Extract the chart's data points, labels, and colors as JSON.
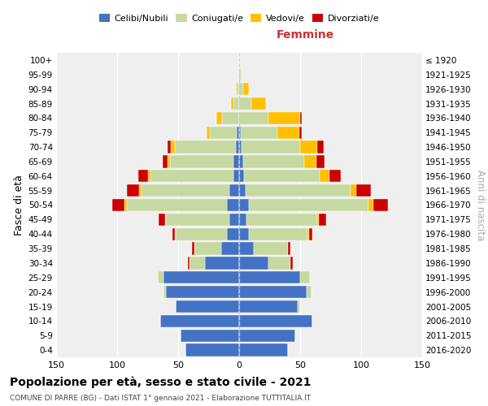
{
  "age_groups": [
    "0-4",
    "5-9",
    "10-14",
    "15-19",
    "20-24",
    "25-29",
    "30-34",
    "35-39",
    "40-44",
    "45-49",
    "50-54",
    "55-59",
    "60-64",
    "65-69",
    "70-74",
    "75-79",
    "80-84",
    "85-89",
    "90-94",
    "95-99",
    "100+"
  ],
  "birth_years": [
    "2016-2020",
    "2011-2015",
    "2006-2010",
    "2001-2005",
    "1996-2000",
    "1991-1995",
    "1986-1990",
    "1981-1985",
    "1976-1980",
    "1971-1975",
    "1966-1970",
    "1961-1965",
    "1956-1960",
    "1951-1955",
    "1946-1950",
    "1941-1945",
    "1936-1940",
    "1931-1935",
    "1926-1930",
    "1921-1925",
    "≤ 1920"
  ],
  "male": {
    "celibe": [
      44,
      48,
      65,
      52,
      60,
      62,
      28,
      15,
      10,
      8,
      10,
      8,
      5,
      5,
      3,
      2,
      0,
      0,
      0,
      0,
      0
    ],
    "coniugato": [
      0,
      0,
      0,
      0,
      2,
      5,
      13,
      22,
      42,
      52,
      82,
      72,
      68,
      52,
      50,
      22,
      14,
      5,
      2,
      1,
      0
    ],
    "vedovo": [
      0,
      0,
      0,
      0,
      0,
      0,
      0,
      0,
      1,
      1,
      2,
      2,
      2,
      2,
      3,
      3,
      5,
      2,
      1,
      0,
      0
    ],
    "divorziato": [
      0,
      0,
      0,
      0,
      0,
      0,
      1,
      2,
      2,
      5,
      10,
      10,
      8,
      4,
      3,
      0,
      0,
      0,
      0,
      0,
      0
    ]
  },
  "female": {
    "nubile": [
      40,
      46,
      60,
      48,
      55,
      50,
      24,
      12,
      8,
      6,
      8,
      5,
      4,
      3,
      2,
      1,
      0,
      0,
      0,
      0,
      0
    ],
    "coniugata": [
      0,
      0,
      0,
      2,
      4,
      8,
      18,
      28,
      48,
      58,
      98,
      86,
      62,
      50,
      48,
      30,
      24,
      10,
      3,
      1,
      0
    ],
    "vedova": [
      0,
      0,
      0,
      0,
      0,
      0,
      0,
      0,
      1,
      1,
      4,
      5,
      8,
      10,
      14,
      18,
      26,
      12,
      5,
      1,
      0
    ],
    "divorziata": [
      0,
      0,
      0,
      0,
      0,
      0,
      2,
      2,
      3,
      6,
      12,
      12,
      9,
      7,
      5,
      2,
      1,
      0,
      0,
      0,
      0
    ]
  },
  "colors": {
    "celibe": "#4472c4",
    "coniugato": "#c5d9a0",
    "vedovo": "#ffc000",
    "divorziato": "#cc0000"
  },
  "title": "Popolazione per età, sesso e stato civile - 2021",
  "subtitle": "COMUNE DI PARRE (BG) - Dati ISTAT 1° gennaio 2021 - Elaborazione TUTTITALIA.IT",
  "xlabel_right": "Femmine",
  "ylabel_left": "Fasce di età",
  "ylabel_right": "Anni di nascita",
  "xlim": 150,
  "legend_labels": [
    "Celibi/Nubili",
    "Coniugati/e",
    "Vedovi/e",
    "Divorziati/e"
  ],
  "bg_color": "#efefef"
}
